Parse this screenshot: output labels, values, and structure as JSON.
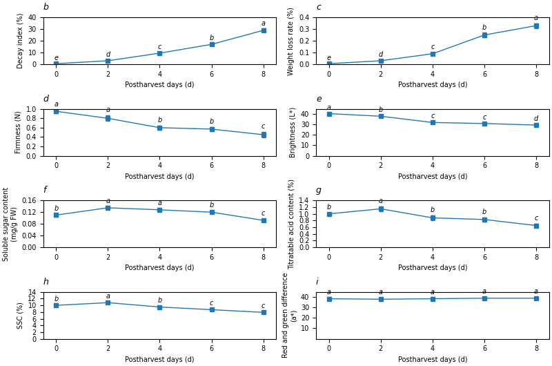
{
  "chart_data": [
    {
      "type": "line",
      "title": "b",
      "xlabel": "Postharvest days (d)",
      "ylabel": "Decay index (%)",
      "x": [
        0,
        2,
        4,
        6,
        8
      ],
      "values": [
        0.5,
        3.0,
        9.5,
        17.0,
        29.0
      ],
      "errors": [
        0.2,
        0.5,
        0.8,
        1.0,
        1.5
      ],
      "annotations": [
        "e",
        "d",
        "c",
        "b",
        "a"
      ],
      "xlim": [
        -0.5,
        8.5
      ],
      "xticks": [
        0,
        2,
        4,
        6,
        8
      ],
      "ylim": [
        0,
        40
      ],
      "yticks": [
        0,
        10,
        20,
        30,
        40
      ],
      "marker": "square",
      "line_style": "solid"
    },
    {
      "type": "line",
      "title": "c",
      "xlabel": "Postharvest days (d)",
      "ylabel": "Weight loss rate (%)",
      "x": [
        0,
        2,
        4,
        6,
        8
      ],
      "values": [
        0.005,
        0.03,
        0.09,
        0.25,
        0.33
      ],
      "errors": [
        0.002,
        0.005,
        0.01,
        0.02,
        0.02
      ],
      "annotations": [
        "e",
        "d",
        "c",
        "b",
        "a"
      ],
      "xlim": [
        -0.5,
        8.5
      ],
      "xticks": [
        0,
        2,
        4,
        6,
        8
      ],
      "ylim": [
        0,
        0.4
      ],
      "yticks": [
        {
          "value": 0,
          "label": "0.0"
        },
        0.1,
        0.2,
        0.3,
        0.4
      ],
      "marker": "square",
      "line_style": "solid"
    },
    {
      "type": "line",
      "title": "d",
      "xlabel": "Postharvest days (d)",
      "ylabel": "Firmness (N)",
      "x": [
        0,
        2,
        4,
        6,
        8
      ],
      "values": [
        0.95,
        0.8,
        0.6,
        0.57,
        0.45
      ],
      "errors": [
        0.04,
        0.06,
        0.05,
        0.05,
        0.06
      ],
      "annotations": [
        "a",
        "a",
        "b",
        "b",
        "c"
      ],
      "xlim": [
        -0.5,
        8.5
      ],
      "xticks": [
        0,
        2,
        4,
        6,
        8
      ],
      "ylim": [
        0,
        1
      ],
      "yticks": [
        {
          "value": 0,
          "label": "0.0"
        },
        0.2,
        0.4,
        0.6,
        0.8,
        {
          "value": 1,
          "label": "1.0"
        }
      ],
      "marker": "square",
      "line_style": "solid"
    },
    {
      "type": "line",
      "title": "e",
      "xlabel": "Postharvest days (d)",
      "ylabel": "Brightness (L*)",
      "x": [
        0,
        2,
        4,
        6,
        8
      ],
      "values": [
        40.5,
        38.0,
        32.0,
        31.0,
        29.5
      ],
      "errors": [
        0.5,
        0.8,
        0.8,
        0.8,
        0.8
      ],
      "annotations": [
        "a",
        "b",
        "c",
        "c",
        "d"
      ],
      "xlim": [
        -0.5,
        8.5
      ],
      "xticks": [
        0,
        2,
        4,
        6,
        8
      ],
      "ylim": [
        0,
        45
      ],
      "yticks": [
        0,
        10,
        20,
        30,
        40
      ],
      "marker": "square",
      "line_style": "solid"
    },
    {
      "type": "line",
      "title": "f",
      "xlabel": "Postharvest days (d)",
      "ylabel": "Soluble sugar content\n(mg/g FW)",
      "x": [
        0,
        2,
        4,
        6,
        8
      ],
      "values": [
        0.11,
        0.135,
        0.128,
        0.12,
        0.092
      ],
      "errors": [
        0.005,
        0.006,
        0.006,
        0.005,
        0.005
      ],
      "annotations": [
        "b",
        "a",
        "a",
        "b",
        "c"
      ],
      "xlim": [
        -0.5,
        8.5
      ],
      "xticks": [
        0,
        2,
        4,
        6,
        8
      ],
      "ylim": [
        0,
        0.16
      ],
      "yticks": [
        {
          "value": 0,
          "label": "0.00"
        },
        0.04,
        0.08,
        0.12,
        0.16
      ],
      "marker": "square",
      "line_style": "solid"
    },
    {
      "type": "line",
      "title": "g",
      "xlabel": "Postharvest days (d)",
      "ylabel": "Titratable acid content (%)",
      "x": [
        0,
        2,
        4,
        6,
        8
      ],
      "values": [
        1.0,
        1.15,
        0.88,
        0.83,
        0.65
      ],
      "errors": [
        0.04,
        0.08,
        0.07,
        0.06,
        0.05
      ],
      "annotations": [
        "b",
        "a",
        "b",
        "b",
        "c"
      ],
      "xlim": [
        -0.5,
        8.5
      ],
      "xticks": [
        0,
        2,
        4,
        6,
        8
      ],
      "ylim": [
        0,
        1.4
      ],
      "yticks": [
        {
          "value": 0,
          "label": "0.0"
        },
        0.2,
        0.4,
        0.6,
        0.8,
        {
          "value": 1,
          "label": "1.0"
        },
        1.2,
        1.4
      ],
      "marker": "square",
      "line_style": "solid"
    },
    {
      "type": "line",
      "title": "h",
      "xlabel": "Postharvest days (d)",
      "ylabel": "SSC (%)",
      "x": [
        0,
        2,
        4,
        6,
        8
      ],
      "values": [
        10.0,
        10.8,
        9.5,
        8.7,
        7.9
      ],
      "errors": [
        0.3,
        0.4,
        0.3,
        0.3,
        0.3
      ],
      "annotations": [
        "b",
        "a",
        "b",
        "c",
        "c"
      ],
      "xlim": [
        -0.5,
        8.5
      ],
      "xticks": [
        0,
        2,
        4,
        6,
        8
      ],
      "ylim": [
        0,
        14
      ],
      "yticks": [
        0,
        2,
        4,
        6,
        8,
        10,
        12,
        14
      ],
      "marker": "square",
      "line_style": "solid"
    },
    {
      "type": "line",
      "title": "i",
      "xlabel": "Postharvest days (d)",
      "ylabel": "Red and green difference\n(a*)",
      "x": [
        0,
        2,
        4,
        6,
        8
      ],
      "values": [
        38.5,
        38.0,
        38.5,
        39.0,
        39.0
      ],
      "errors": [
        1.5,
        1.5,
        1.5,
        1.5,
        1.5
      ],
      "annotations": [
        "a",
        "a",
        "a",
        "a",
        "a"
      ],
      "xlim": [
        -0.5,
        8.5
      ],
      "xticks": [
        0,
        2,
        4,
        6,
        8
      ],
      "ylim": [
        0,
        45
      ],
      "yticks": [
        10,
        20,
        30,
        40
      ],
      "marker": "square",
      "line_style": "solid"
    }
  ]
}
